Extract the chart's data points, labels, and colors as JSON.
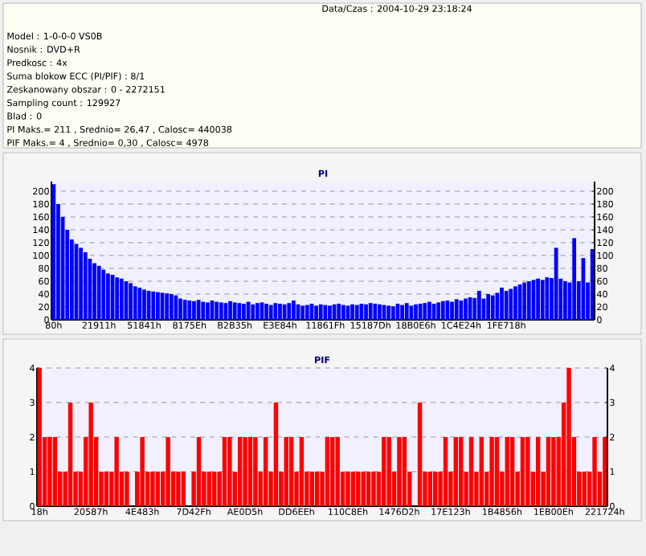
{
  "chart_data": [
    {
      "type": "bar",
      "title": "PI",
      "annotations": [
        "Data/Czas : 2004-10-29 23:18:24",
        "Model : 1-0-0-0 VS0B",
        "Nosnik : DVD+R",
        "Predkosc : 4x",
        "Suma blokow ECC (PI/PIF) : 8/1",
        "Zeskanowany obszar : 0 - 2272151",
        "Sampling count : 129927",
        "Blad : 0",
        "PI Maks.= 211 , Srednio= 26,47 , Calosc= 440038",
        "PIF Maks.= 4 , Srednio= 0,30 , Calosc= 4978"
      ],
      "categories": [
        "80h",
        null,
        null,
        null,
        null,
        null,
        null,
        null,
        null,
        null,
        "21911h",
        null,
        null,
        null,
        null,
        null,
        null,
        null,
        null,
        null,
        "51841h",
        null,
        null,
        null,
        null,
        null,
        null,
        null,
        null,
        null,
        "8175Eh",
        null,
        null,
        null,
        null,
        null,
        null,
        null,
        null,
        null,
        "B2B35h",
        null,
        null,
        null,
        null,
        null,
        null,
        null,
        null,
        null,
        "E3E84h",
        null,
        null,
        null,
        null,
        null,
        null,
        null,
        null,
        null,
        "11861Fh",
        null,
        null,
        null,
        null,
        null,
        null,
        null,
        null,
        null,
        "15187Dh",
        null,
        null,
        null,
        null,
        null,
        null,
        null,
        null,
        null,
        "18B0E6h",
        null,
        null,
        null,
        null,
        null,
        null,
        null,
        null,
        null,
        "1C4E24h",
        null,
        null,
        null,
        null,
        null,
        null,
        null,
        null,
        null,
        "1FE718h",
        null,
        null,
        null,
        null,
        null,
        null,
        null,
        null,
        null,
        null,
        null,
        null,
        null,
        null,
        null,
        null,
        null,
        null,
        null
      ],
      "values": [
        211,
        180,
        160,
        140,
        125,
        118,
        112,
        105,
        95,
        88,
        84,
        78,
        72,
        70,
        66,
        64,
        60,
        57,
        52,
        50,
        47,
        45,
        44,
        43,
        42,
        41,
        40,
        38,
        33,
        31,
        30,
        29,
        31,
        28,
        27,
        30,
        28,
        27,
        26,
        29,
        27,
        26,
        25,
        28,
        24,
        26,
        27,
        25,
        23,
        26,
        25,
        24,
        26,
        30,
        24,
        22,
        23,
        25,
        22,
        24,
        23,
        22,
        24,
        25,
        23,
        22,
        24,
        23,
        25,
        24,
        26,
        25,
        24,
        23,
        22,
        21,
        25,
        23,
        26,
        22,
        24,
        25,
        26,
        28,
        25,
        27,
        29,
        30,
        28,
        32,
        30,
        33,
        35,
        34,
        45,
        33,
        40,
        38,
        42,
        50,
        45,
        48,
        52,
        55,
        58,
        60,
        62,
        64,
        62,
        66,
        65,
        112,
        64,
        60,
        58,
        127,
        60,
        96,
        58,
        110
      ],
      "color": "#0000ff",
      "ylim": [
        0,
        215
      ],
      "yticks": [
        0,
        20,
        40,
        60,
        80,
        100,
        120,
        140,
        160,
        180,
        200
      ],
      "y2lim": [
        0,
        215
      ],
      "y2ticks": [
        0,
        20,
        40,
        60,
        80,
        100,
        120,
        140,
        160,
        180,
        200
      ],
      "grid": "y"
    },
    {
      "type": "bar",
      "title": "PIF",
      "categories": [
        "18h",
        null,
        null,
        null,
        null,
        null,
        null,
        null,
        null,
        null,
        "20587h",
        null,
        null,
        null,
        null,
        null,
        null,
        null,
        null,
        null,
        "4E483h",
        null,
        null,
        null,
        null,
        null,
        null,
        null,
        null,
        null,
        "7D42Fh",
        null,
        null,
        null,
        null,
        null,
        null,
        null,
        null,
        null,
        "AE0D5h",
        null,
        null,
        null,
        null,
        null,
        null,
        null,
        null,
        null,
        "DD6EEh",
        null,
        null,
        null,
        null,
        null,
        null,
        null,
        null,
        null,
        "110C8Eh",
        null,
        null,
        null,
        null,
        null,
        null,
        null,
        null,
        null,
        "1476D2h",
        null,
        null,
        null,
        null,
        null,
        null,
        null,
        null,
        null,
        "17E123h",
        null,
        null,
        null,
        null,
        null,
        null,
        null,
        null,
        null,
        "1B4856h",
        null,
        null,
        null,
        null,
        null,
        null,
        null,
        null,
        null,
        "1EB00Eh",
        null,
        null,
        null,
        null,
        null,
        null,
        null,
        null,
        null,
        "221724h"
      ],
      "values": [
        4,
        2,
        2,
        2,
        1,
        1,
        3,
        1,
        1,
        2,
        3,
        2,
        1,
        1,
        1,
        2,
        1,
        1,
        0,
        1,
        2,
        1,
        1,
        1,
        1,
        2,
        1,
        1,
        1,
        0,
        1,
        2,
        1,
        1,
        1,
        1,
        2,
        2,
        1,
        2,
        2,
        2,
        2,
        1,
        2,
        1,
        3,
        1,
        2,
        2,
        1,
        2,
        1,
        1,
        1,
        1,
        2,
        2,
        2,
        1,
        1,
        1,
        1,
        1,
        1,
        1,
        1,
        2,
        2,
        1,
        2,
        2,
        1,
        0,
        3,
        1,
        1,
        1,
        1,
        2,
        1,
        2,
        2,
        1,
        2,
        1,
        2,
        1,
        2,
        2,
        1,
        2,
        2,
        1,
        2,
        2,
        1,
        2,
        1,
        2,
        2,
        2,
        3,
        4,
        2,
        1,
        1,
        1,
        2,
        1,
        2
      ],
      "color": "#ff0000",
      "ylim": [
        0,
        4
      ],
      "yticks": [
        0,
        1,
        2,
        3,
        4
      ],
      "y2lim": [
        0,
        4
      ],
      "y2ticks": [
        0,
        1,
        2,
        3,
        4
      ],
      "grid": "y"
    }
  ]
}
